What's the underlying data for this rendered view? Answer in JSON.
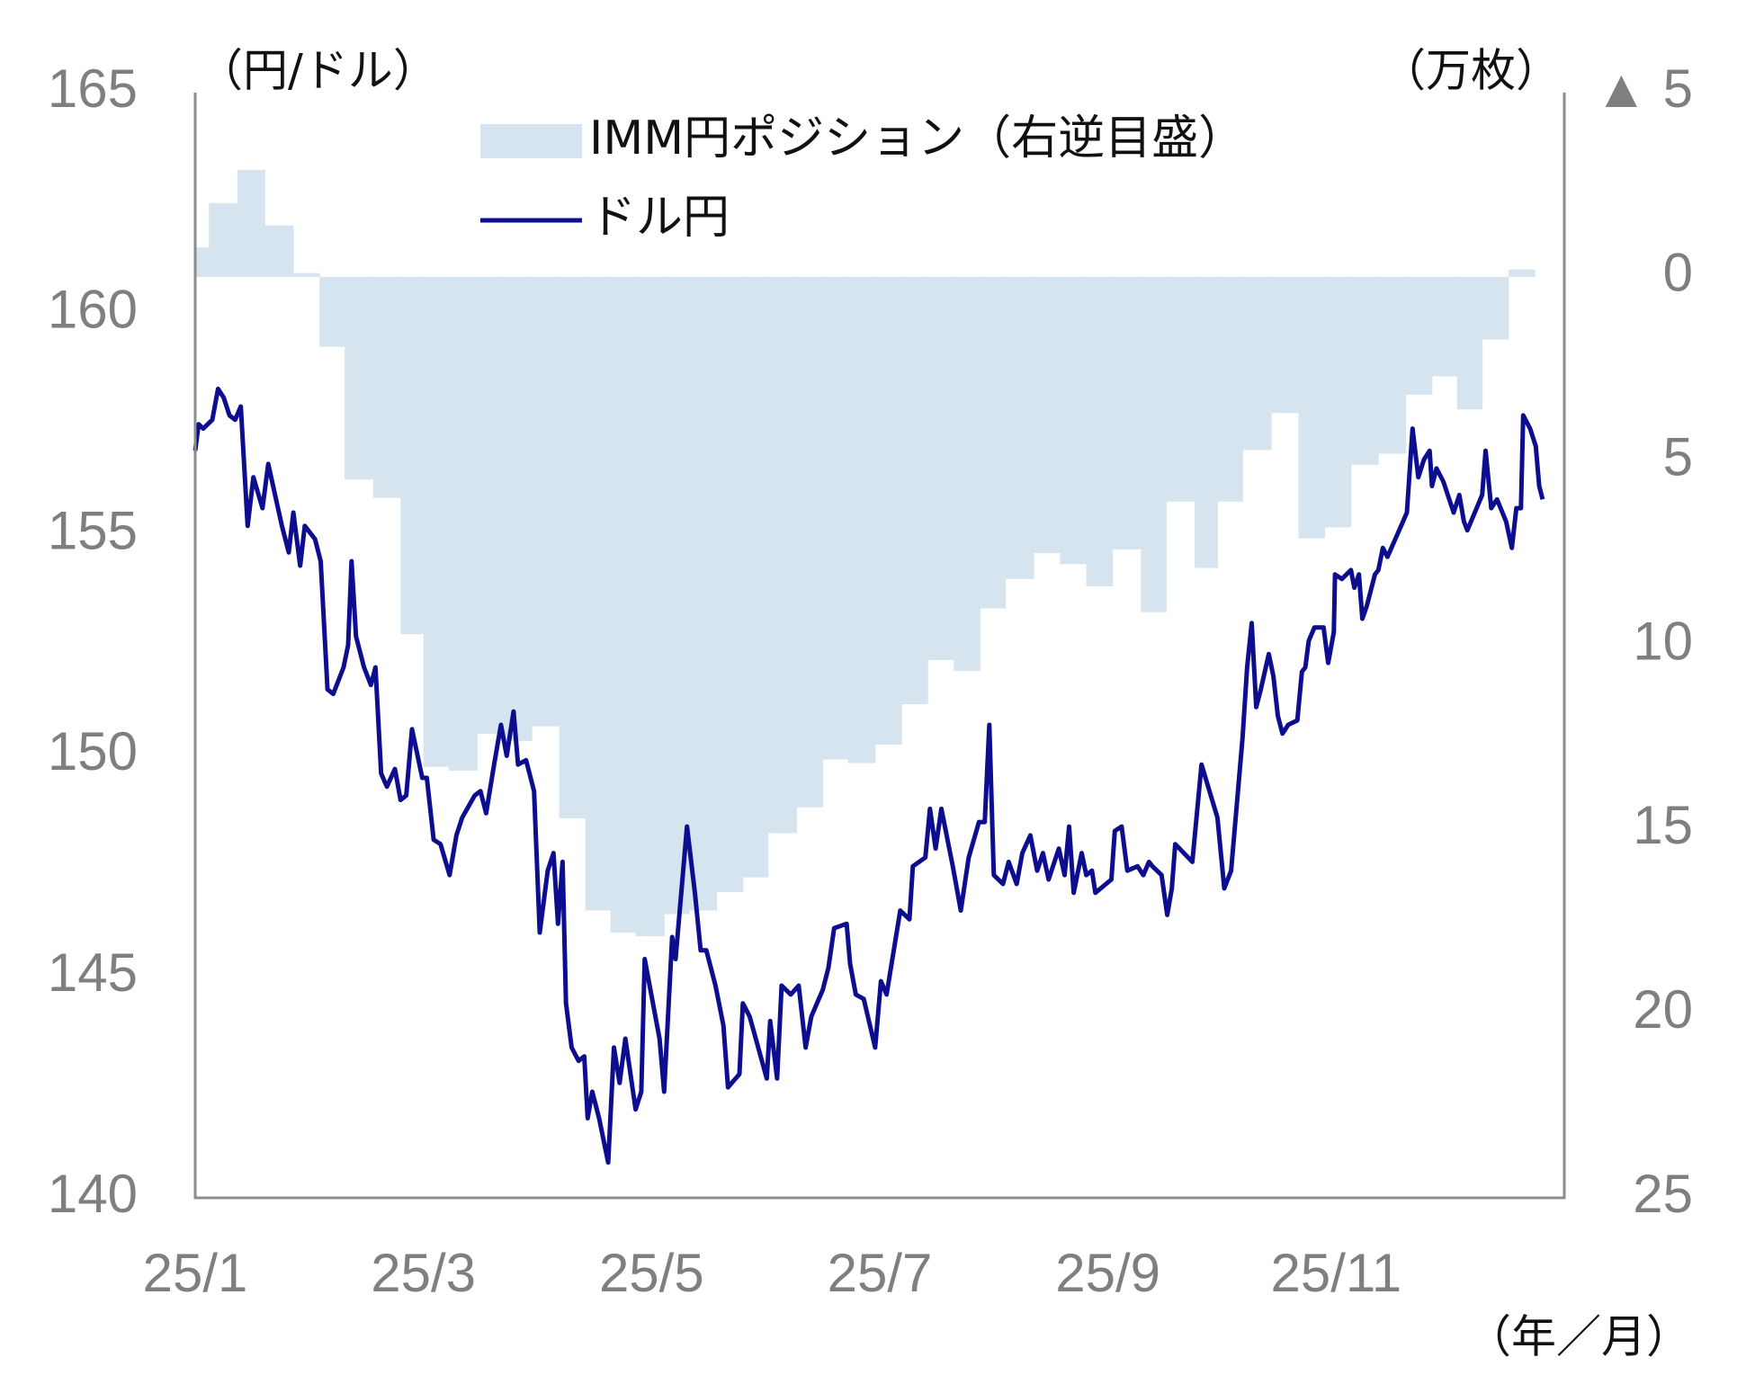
{
  "chart_data": {
    "type": "combo",
    "y_label": "（円/ドル）",
    "y2_label": "（万枚）",
    "x_label": "（年／月）",
    "xlim": [
      0,
      12
    ],
    "xticks": [
      {
        "value": 0,
        "label": "25/1"
      },
      {
        "value": 2,
        "label": "25/3"
      },
      {
        "value": 4,
        "label": "25/5"
      },
      {
        "value": 6,
        "label": "25/7"
      },
      {
        "value": 8,
        "label": "25/9"
      },
      {
        "value": 10,
        "label": "25/11"
      }
    ],
    "ylim": [
      140,
      165
    ],
    "yticks": [
      140,
      145,
      150,
      155,
      160,
      165
    ],
    "y2lim": [
      -5,
      25
    ],
    "y2_reversed": true,
    "y2ticks": [
      {
        "value": -5,
        "label": "▲ 5"
      },
      0,
      5,
      10,
      15,
      20,
      25
    ],
    "grid": false,
    "series": [
      {
        "name": "IMM円ポジション（右逆目盛）",
        "type": "area",
        "step": true,
        "axis": "y2",
        "color": "#d5e4ef",
        "x": [
          0,
          0.12,
          0.37,
          0.61,
          0.86,
          1.09,
          1.31,
          1.56,
          1.8,
          2.0,
          2.22,
          2.47,
          2.7,
          2.95,
          3.19,
          3.42,
          3.64,
          3.86,
          4.11,
          4.33,
          4.57,
          4.8,
          5.02,
          5.27,
          5.5,
          5.72,
          5.96,
          6.19,
          6.42,
          6.65,
          6.88,
          7.1,
          7.35,
          7.58,
          7.81,
          8.04,
          8.29,
          8.51,
          8.76,
          8.96,
          9.18,
          9.43,
          9.67,
          9.9,
          10.13,
          10.37,
          10.61,
          10.84,
          11.06,
          11.28,
          11.51
        ],
        "values": [
          -0.8,
          -2.0,
          -2.9,
          -1.4,
          -0.1,
          1.9,
          5.5,
          6.0,
          9.7,
          13.3,
          13.4,
          12.4,
          12.6,
          12.2,
          14.7,
          17.2,
          17.8,
          17.9,
          17.3,
          17.2,
          16.7,
          16.3,
          15.1,
          14.4,
          13.1,
          13.2,
          12.7,
          11.6,
          10.4,
          10.7,
          9.0,
          8.2,
          7.5,
          7.8,
          8.4,
          7.4,
          9.1,
          6.1,
          7.9,
          6.1,
          4.7,
          3.7,
          7.1,
          6.8,
          5.1,
          4.8,
          3.2,
          2.7,
          3.6,
          1.7,
          -0.2
        ]
      },
      {
        "name": "ドル円",
        "type": "line",
        "color": "#0d0d8f",
        "x": [
          0,
          0.03,
          0.07,
          0.15,
          0.2,
          0.25,
          0.3,
          0.35,
          0.4,
          0.46,
          0.51,
          0.59,
          0.64,
          0.7,
          0.76,
          0.82,
          0.86,
          0.92,
          0.96,
          1.05,
          1.1,
          1.16,
          1.21,
          1.3,
          1.34,
          1.37,
          1.41,
          1.48,
          1.54,
          1.58,
          1.63,
          1.68,
          1.75,
          1.8,
          1.85,
          1.9,
          1.99,
          2.03,
          2.09,
          2.15,
          2.23,
          2.29,
          2.34,
          2.45,
          2.5,
          2.55,
          2.62,
          2.68,
          2.73,
          2.79,
          2.83,
          2.9,
          2.97,
          3.02,
          3.09,
          3.14,
          3.18,
          3.22,
          3.25,
          3.3,
          3.36,
          3.41,
          3.44,
          3.48,
          3.54,
          3.62,
          3.67,
          3.72,
          3.77,
          3.86,
          3.91,
          3.94,
          4.07,
          4.11,
          4.18,
          4.21,
          4.31,
          4.38,
          4.43,
          4.48,
          4.56,
          4.63,
          4.67,
          4.77,
          4.8,
          4.86,
          5.01,
          5.04,
          5.1,
          5.14,
          5.22,
          5.29,
          5.35,
          5.4,
          5.5,
          5.55,
          5.6,
          5.71,
          5.74,
          5.79,
          5.86,
          5.96,
          6.01,
          6.06,
          6.18,
          6.26,
          6.29,
          6.4,
          6.44,
          6.49,
          6.54,
          6.64,
          6.71,
          6.78,
          6.87,
          6.92,
          6.96,
          7.0,
          7.08,
          7.13,
          7.2,
          7.25,
          7.32,
          7.38,
          7.43,
          7.48,
          7.57,
          7.62,
          7.66,
          7.7,
          7.77,
          7.81,
          7.86,
          7.89,
          8.03,
          8.06,
          8.12,
          8.17,
          8.26,
          8.31,
          8.36,
          8.39,
          8.47,
          8.52,
          8.56,
          8.59,
          8.74,
          8.82,
          8.96,
          9.02,
          9.08,
          9.18,
          9.22,
          9.26,
          9.3,
          9.34,
          9.41,
          9.45,
          9.49,
          9.53,
          9.58,
          9.66,
          9.7,
          9.73,
          9.76,
          9.81,
          9.89,
          9.93,
          9.98,
          9.99,
          10.05,
          10.13,
          10.16,
          10.2,
          10.23,
          10.27,
          10.34,
          10.37,
          10.41,
          10.45,
          10.57,
          10.62,
          10.67,
          10.72,
          10.77,
          10.82,
          10.84,
          10.88,
          10.94,
          11.03,
          11.08,
          11.12,
          11.15,
          11.28,
          11.31,
          11.36,
          11.41,
          11.49,
          11.54,
          11.58,
          11.62,
          11.64,
          11.7,
          11.75,
          11.78,
          11.81
        ],
        "values": [
          156.9,
          157.5,
          157.4,
          157.6,
          158.3,
          158.1,
          157.7,
          157.6,
          157.9,
          155.2,
          156.3,
          155.6,
          156.6,
          155.9,
          155.2,
          154.6,
          155.5,
          154.3,
          155.2,
          154.9,
          154.4,
          151.5,
          151.4,
          152.0,
          152.5,
          154.4,
          152.7,
          152.0,
          151.6,
          152.0,
          149.6,
          149.3,
          149.7,
          149.0,
          149.1,
          150.6,
          149.5,
          149.5,
          148.1,
          148.0,
          147.3,
          148.2,
          148.6,
          149.1,
          149.2,
          148.7,
          149.8,
          150.7,
          150.0,
          151.0,
          149.8,
          149.9,
          149.2,
          146.0,
          147.4,
          147.8,
          146.2,
          147.6,
          144.4,
          143.4,
          143.1,
          143.2,
          141.8,
          142.4,
          141.8,
          140.8,
          143.4,
          142.6,
          143.6,
          142.0,
          142.4,
          145.4,
          143.6,
          142.4,
          145.9,
          145.4,
          148.4,
          146.9,
          145.6,
          145.6,
          144.8,
          143.9,
          142.5,
          142.8,
          144.4,
          144.1,
          142.7,
          144.0,
          142.7,
          144.8,
          144.6,
          144.8,
          143.4,
          144.1,
          144.7,
          145.2,
          146.1,
          146.2,
          145.3,
          144.6,
          144.5,
          143.4,
          144.9,
          144.6,
          146.5,
          146.3,
          147.5,
          147.7,
          148.8,
          147.9,
          148.8,
          147.5,
          146.5,
          147.7,
          148.5,
          148.5,
          150.7,
          147.3,
          147.1,
          147.6,
          147.1,
          147.8,
          148.2,
          147.4,
          147.8,
          147.2,
          147.9,
          147.3,
          148.4,
          146.9,
          147.8,
          147.3,
          147.4,
          146.9,
          147.2,
          148.3,
          148.4,
          147.4,
          147.5,
          147.3,
          147.6,
          147.5,
          147.3,
          146.4,
          147.0,
          148.0,
          147.6,
          149.8,
          148.6,
          147.0,
          147.4,
          150.4,
          152.0,
          153.0,
          151.1,
          151.5,
          152.3,
          151.8,
          150.9,
          150.5,
          150.7,
          150.8,
          151.9,
          152.0,
          152.6,
          152.9,
          152.9,
          152.1,
          152.8,
          154.1,
          154.0,
          154.2,
          153.8,
          154.1,
          153.1,
          153.4,
          154.1,
          154.2,
          154.7,
          154.5,
          155.2,
          155.5,
          157.4,
          156.3,
          156.7,
          156.9,
          156.1,
          156.5,
          156.2,
          155.5,
          155.9,
          155.3,
          155.1,
          155.9,
          156.9,
          155.6,
          155.8,
          155.3,
          154.7,
          155.6,
          155.6,
          157.7,
          157.4,
          157.0,
          156.1,
          155.8
        ]
      }
    ]
  }
}
